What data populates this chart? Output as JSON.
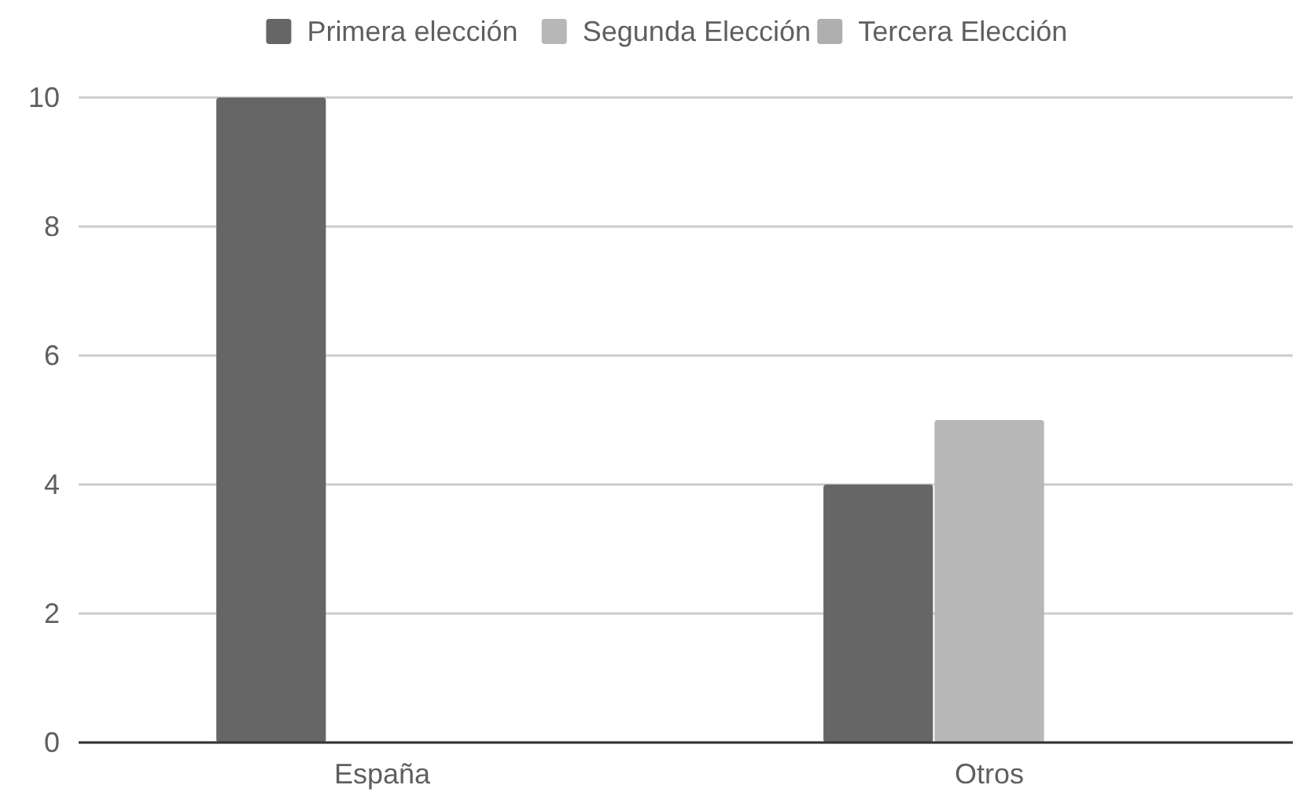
{
  "chart_data": {
    "type": "bar",
    "categories": [
      "España",
      "Otros"
    ],
    "series": [
      {
        "name": "Primera elección",
        "color": "#666666",
        "values": [
          10,
          4
        ]
      },
      {
        "name": "Segunda Elección",
        "color": "#b7b7b7",
        "values": [
          null,
          5
        ]
      },
      {
        "name": "Tercera Elección",
        "color": "#afafaf",
        "values": [
          null,
          null
        ]
      }
    ],
    "ylim": [
      0,
      10
    ],
    "yticks": [
      0,
      2,
      4,
      6,
      8,
      10
    ],
    "grid": "y",
    "legend": "top"
  }
}
